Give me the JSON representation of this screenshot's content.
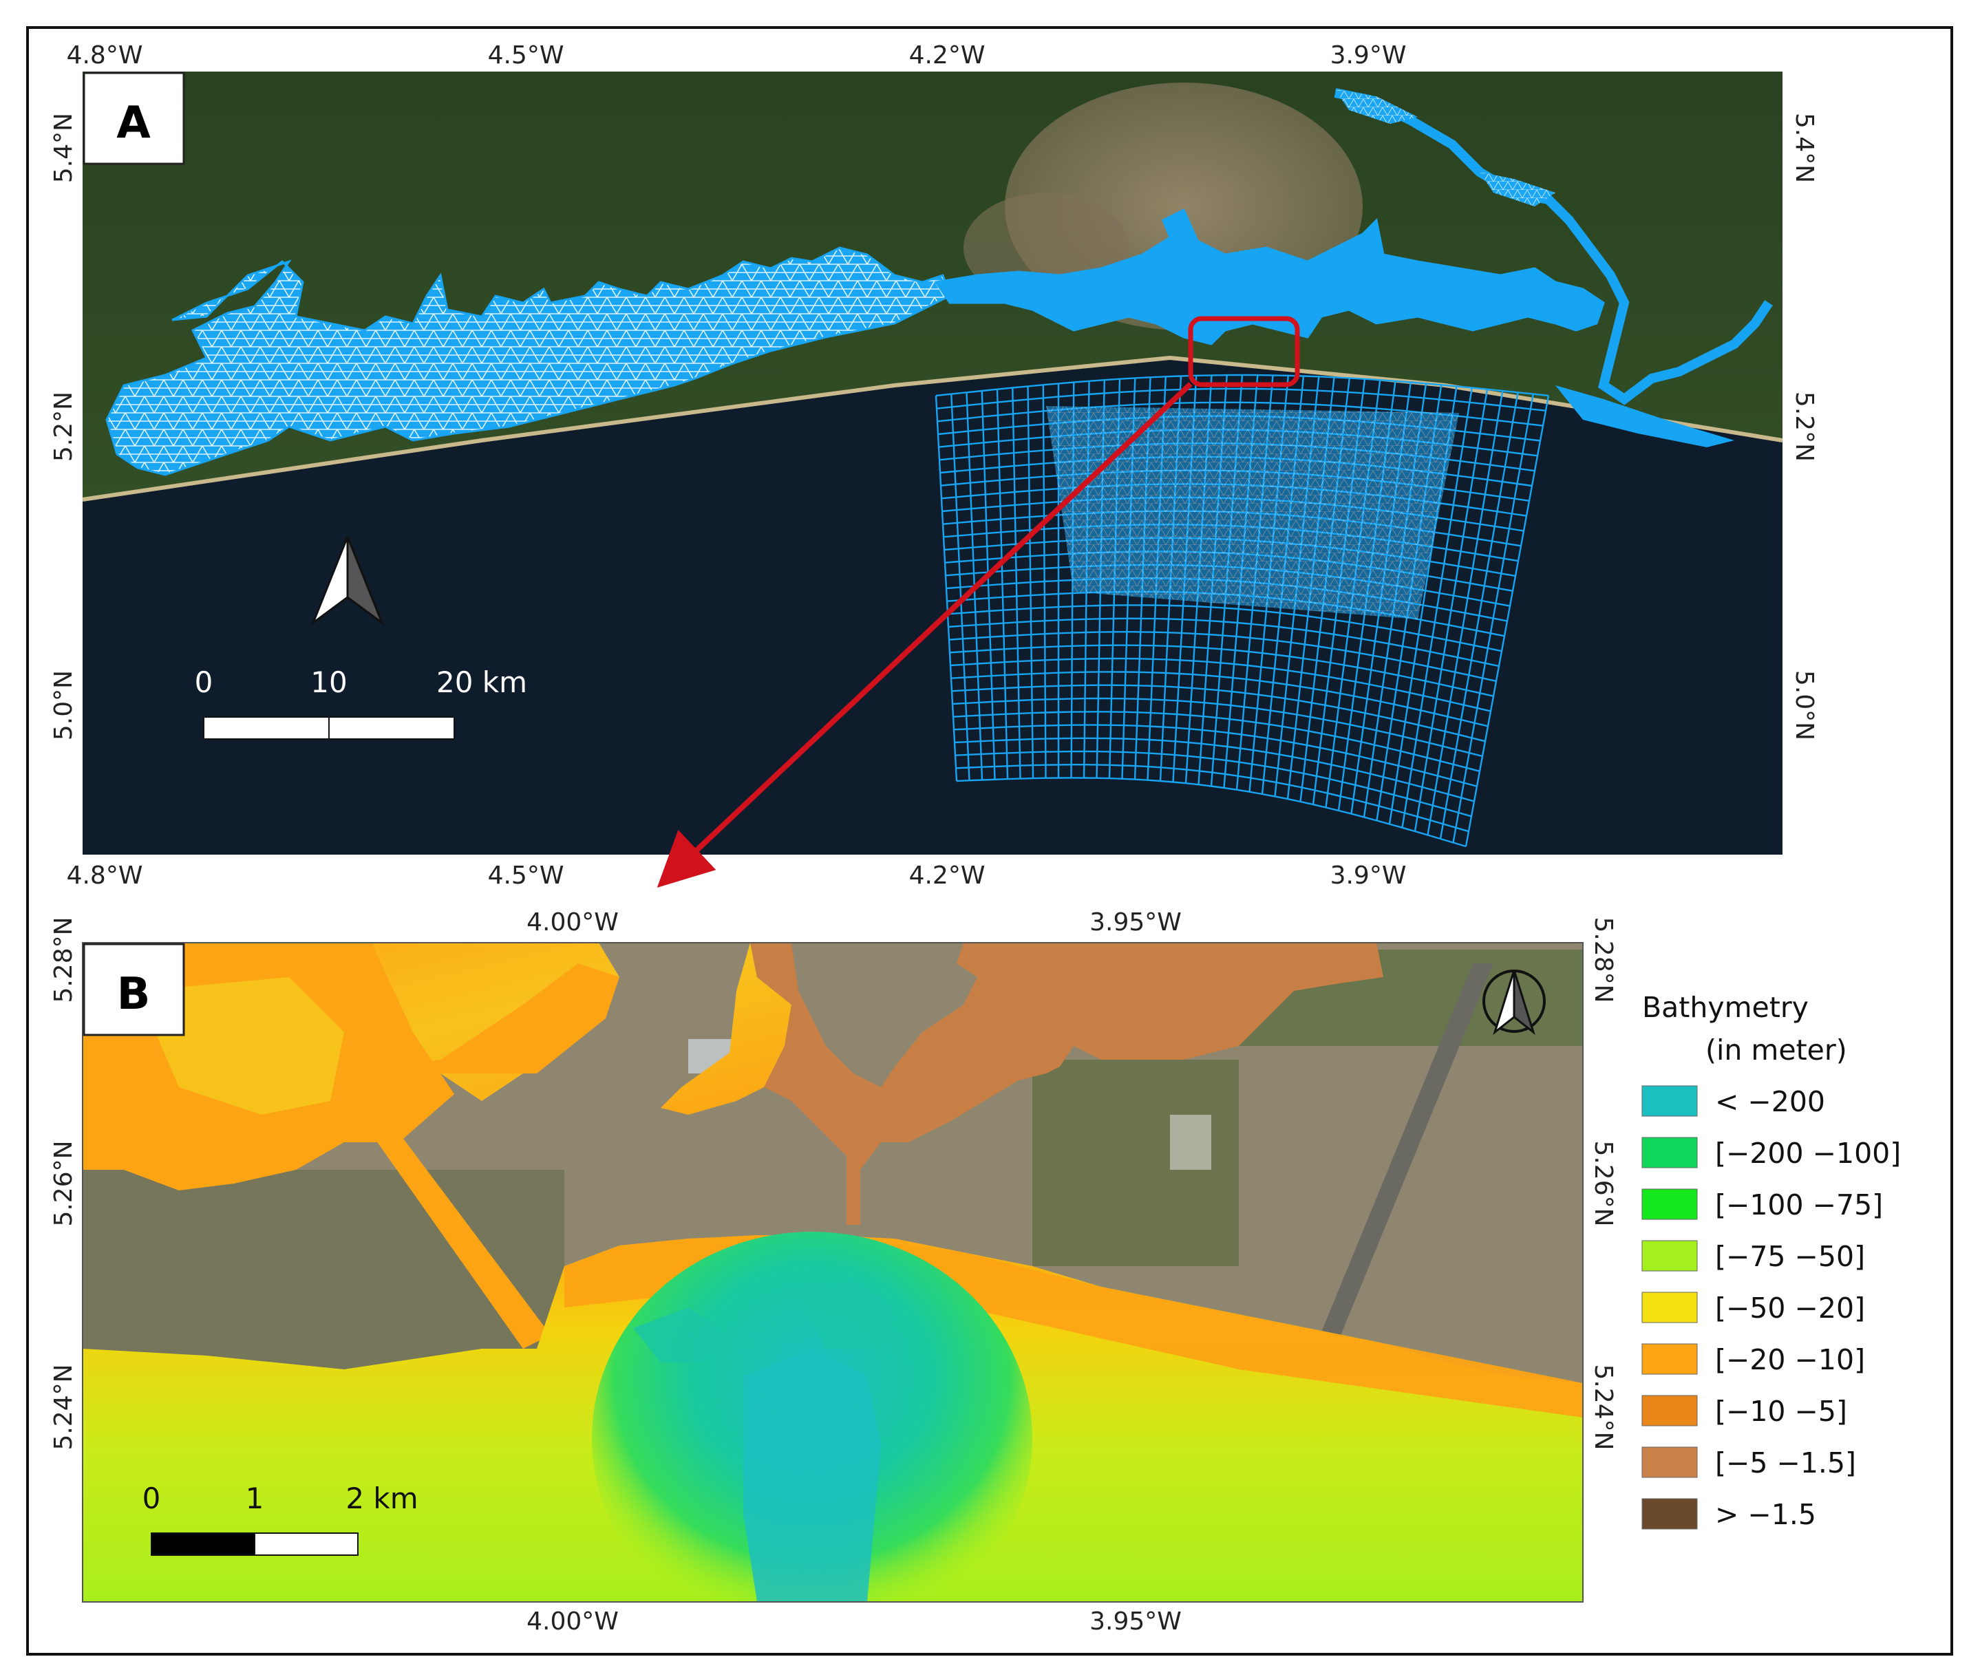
{
  "panel_a": {
    "tag": "A",
    "lon_labels": [
      "4.8°W",
      "4.5°W",
      "4.2°W",
      "3.9°W"
    ],
    "lat_labels": [
      "5.4°N",
      "5.2°N",
      "5.0°N"
    ],
    "scale": {
      "labels": [
        "0",
        "10",
        "20 km"
      ]
    },
    "colors": {
      "mesh": "#17a4f2",
      "sea": "#0f1c2c",
      "land": "#2e4a22",
      "urban": "#8a7b62",
      "highlight": "#d1111b"
    }
  },
  "panel_b": {
    "tag": "B",
    "lon_labels": [
      "4.00°W",
      "3.95°W"
    ],
    "lat_labels": [
      "5.28°N",
      "5.26°N",
      "5.24°N"
    ],
    "scale": {
      "labels": [
        "0",
        "1",
        "2 km"
      ]
    }
  },
  "legend": {
    "title_line1": "Bathymetry",
    "title_line2": "(in meter)",
    "items": [
      {
        "label": "< −200",
        "color": "#1cbfbf"
      },
      {
        "label": "[−200 −100]",
        "color": "#10d65c"
      },
      {
        "label": "[−100 −75]",
        "color": "#15e81c"
      },
      {
        "label": "[−75 −50]",
        "color": "#a3f01e"
      },
      {
        "label": "[−50 −20]",
        "color": "#f4e10f"
      },
      {
        "label": "[−20 −10]",
        "color": "#fca414"
      },
      {
        "label": "[−10 −5]",
        "color": "#e8861a"
      },
      {
        "label": "[−5 −1.5]",
        "color": "#c88148"
      },
      {
        "label": "> −1.5",
        "color": "#6b4a2b"
      }
    ]
  }
}
